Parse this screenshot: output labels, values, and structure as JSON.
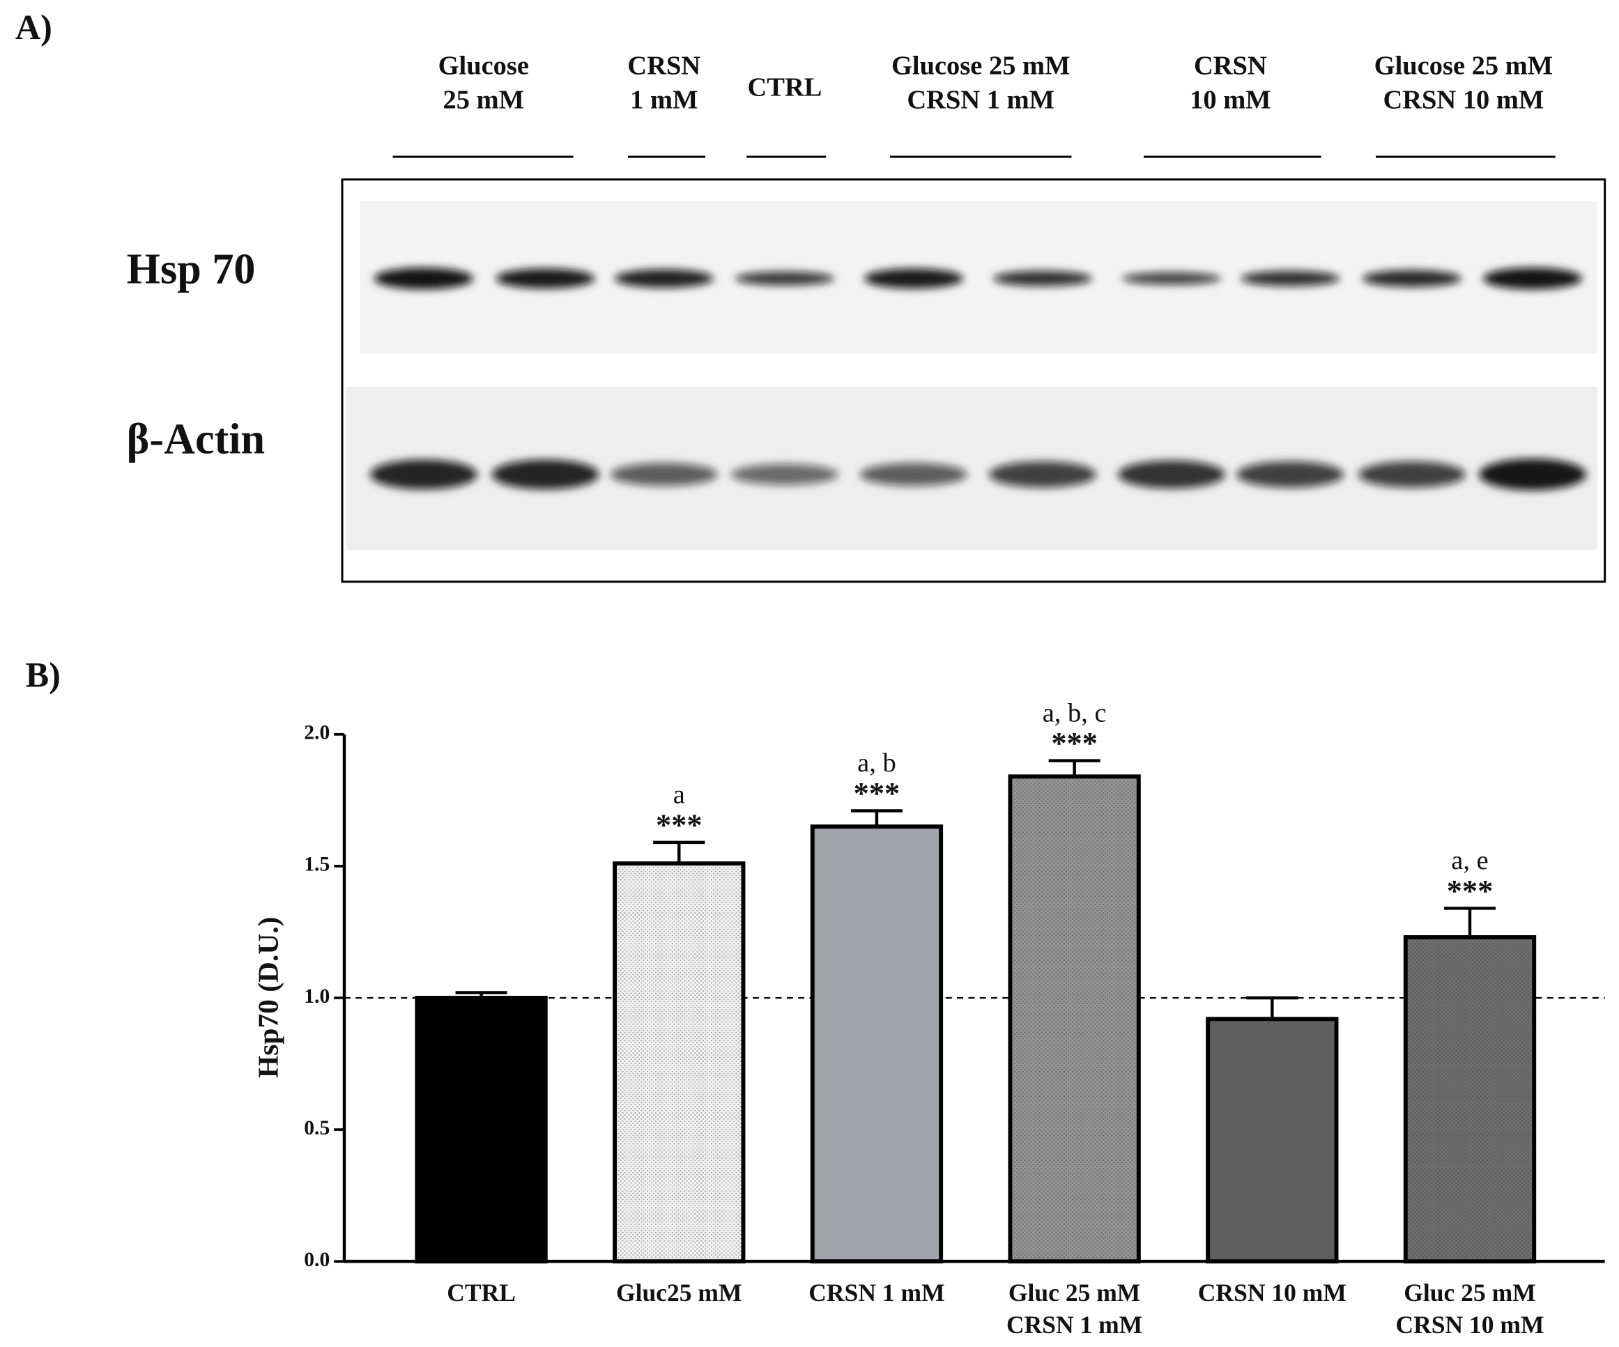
{
  "panels": {
    "a": "A)",
    "b": "B)"
  },
  "blot": {
    "lanes": [
      [
        "Glucose",
        "25 mM"
      ],
      [
        "CRSN",
        "1 mM"
      ],
      [
        "CTRL"
      ],
      [
        "Glucose 25 mM",
        "CRSN 1 mM"
      ],
      [
        "CRSN",
        "10 mM"
      ],
      [
        "Glucose 25 mM",
        "CRSN 10 mM"
      ]
    ],
    "rows": [
      "Hsp 70",
      "β-Actin"
    ]
  },
  "chart_data": {
    "type": "bar",
    "ylabel": "Hsp70 (D.U.)",
    "categories": [
      "CTRL",
      "Gluc25 mM",
      "CRSN 1 mM",
      [
        "Gluc 25 mM",
        "CRSN 1 mM"
      ],
      "CRSN 10 mM",
      [
        "Gluc 25 mM",
        "CRSN 10 mM"
      ]
    ],
    "values": [
      1.0,
      1.51,
      1.65,
      1.84,
      0.92,
      1.23
    ],
    "errors": [
      0.02,
      0.08,
      0.06,
      0.06,
      0.08,
      0.11
    ],
    "colors": [
      "#000000",
      "#f2f2f2",
      "#a2a2aa",
      "#939393",
      "#5f5f5f",
      "#6e6e6e"
    ],
    "patterns": [
      false,
      true,
      false,
      true,
      false,
      true
    ],
    "letters": [
      null,
      "a",
      "a, b",
      "a, b, c",
      null,
      "a, e"
    ],
    "stars": [
      null,
      "***",
      "***",
      "***",
      null,
      "***"
    ],
    "hline": 1.0,
    "ylim": [
      0,
      2.0
    ],
    "yticks": [
      {
        "value": 0,
        "label": "0.0"
      },
      {
        "value": 0.5,
        "label": "0.5"
      },
      {
        "value": 1.0,
        "label": "1.0"
      },
      {
        "value": 1.5,
        "label": "1.5"
      },
      {
        "value": 2.0,
        "label": "2.0"
      }
    ]
  }
}
